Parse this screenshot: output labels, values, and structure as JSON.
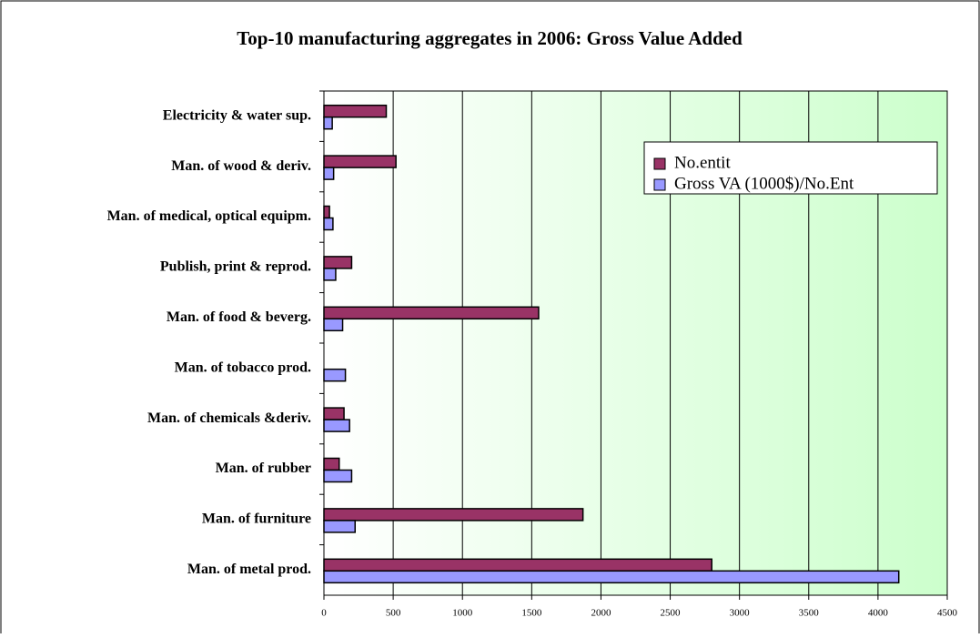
{
  "chart_data": {
    "type": "bar",
    "orientation": "horizontal",
    "title": "Top-10 manufacturing aggregates in 2006: Gross Value Added",
    "categories": [
      "Electricity & water sup.",
      "Man. of wood & deriv.",
      "Man. of medical, optical equipm.",
      "Publish, print & reprod.",
      "Man. of food & beverg.",
      "Man. of tobacco prod.",
      "Man. of chemicals &deriv.",
      "Man. of rubber",
      "Man. of furniture",
      "Man. of metal prod."
    ],
    "series": [
      {
        "name": "No.entit",
        "color": "#993366",
        "values": [
          450,
          520,
          40,
          200,
          1550,
          0,
          145,
          110,
          1870,
          2800
        ]
      },
      {
        "name": "Gross VA (1000$)/No.Ent",
        "color": "#9999ff",
        "values": [
          60,
          70,
          65,
          85,
          135,
          155,
          185,
          200,
          225,
          4150
        ]
      }
    ],
    "xlim": [
      0,
      4500
    ],
    "xticks": [
      0,
      500,
      1000,
      1500,
      2000,
      2500,
      3000,
      3500,
      4000,
      4500
    ],
    "grid": true,
    "legend": "upper right"
  }
}
